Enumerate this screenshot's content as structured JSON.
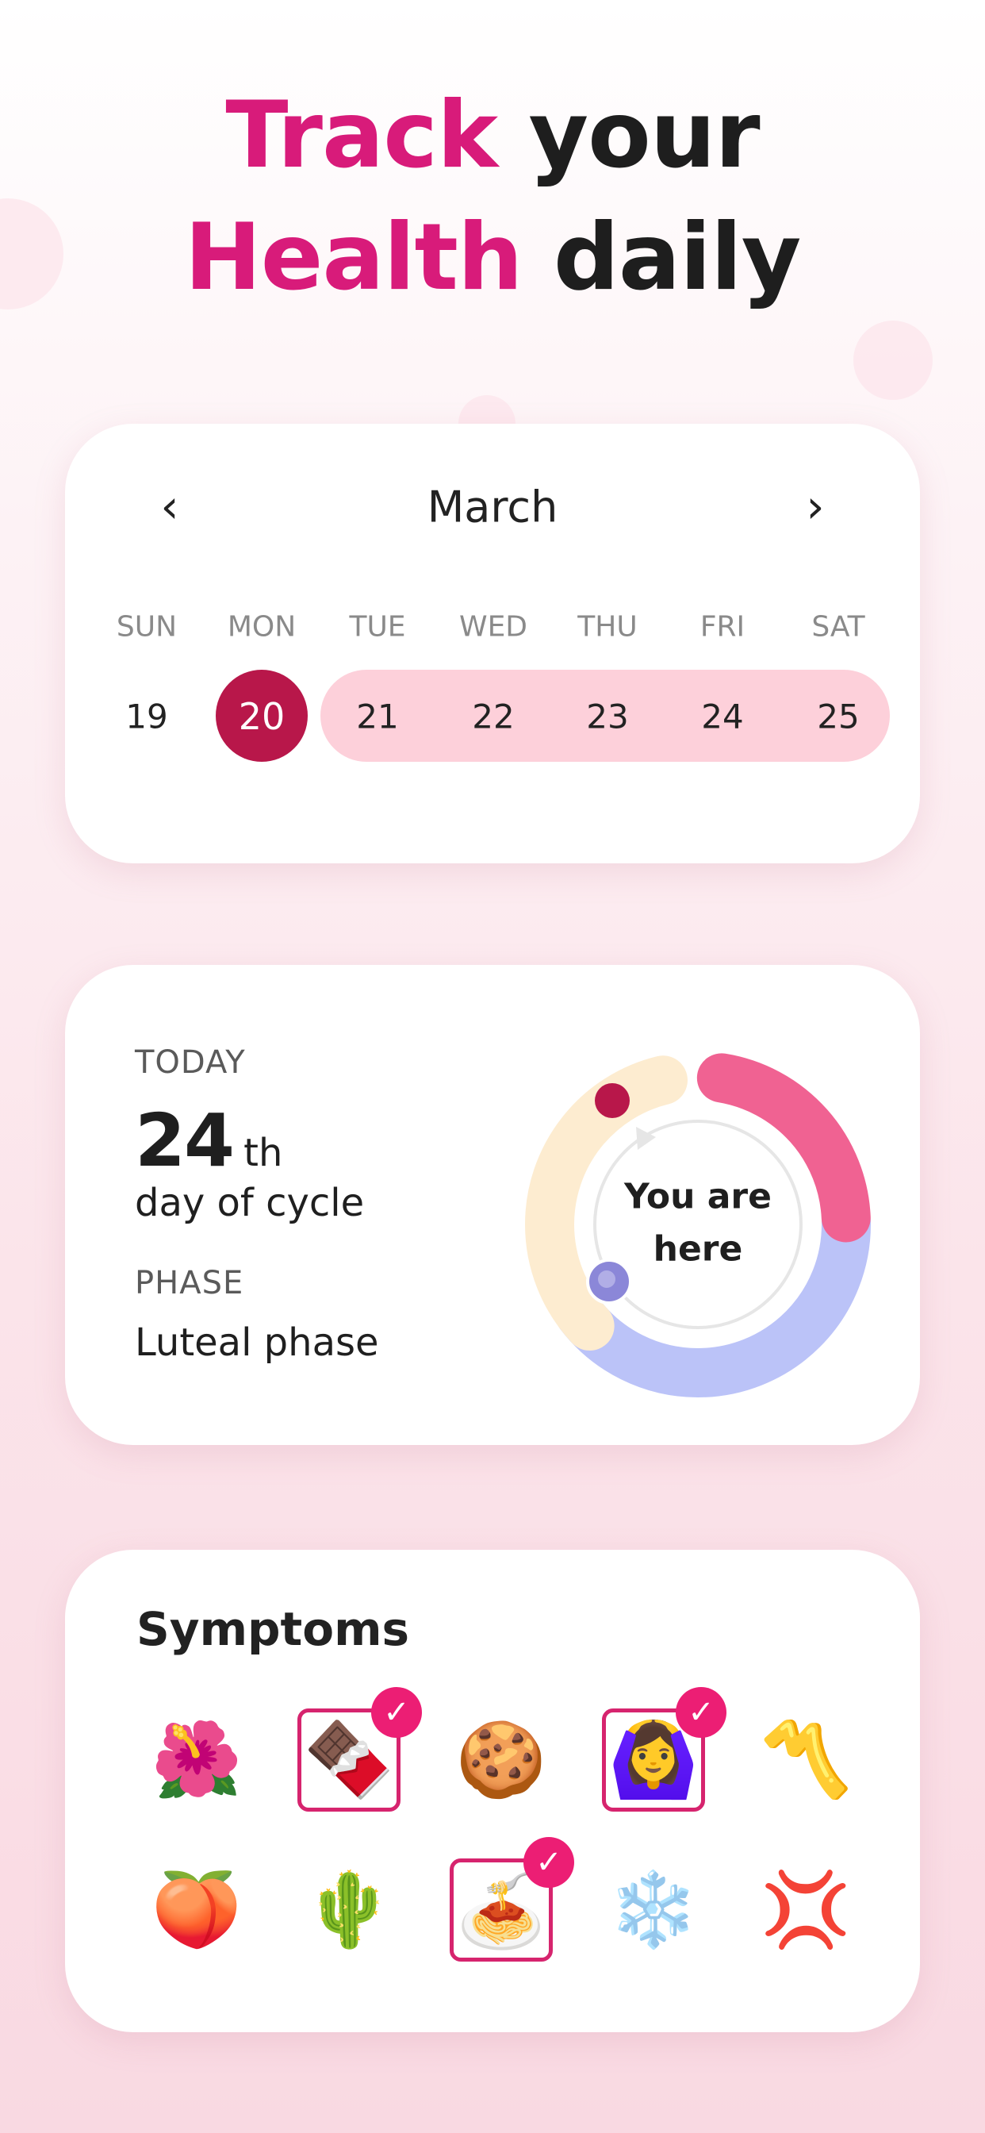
{
  "headline": {
    "line1_accent": "Track",
    "line1_rest": " your",
    "line2_accent": "Health",
    "line2_rest": " daily"
  },
  "calendar": {
    "month": "March",
    "prev_icon": "chevron-left-icon",
    "next_icon": "chevron-right-icon",
    "prev_label": "‹",
    "next_label": "›",
    "weekdays": [
      "SUN",
      "MON",
      "TUE",
      "WED",
      "THU",
      "FRI",
      "SAT"
    ],
    "days": [
      "19",
      "20",
      "21",
      "22",
      "23",
      "24",
      "25"
    ],
    "selected_day": "20",
    "highlighted_range": [
      "21",
      "25"
    ],
    "colors": {
      "selected": "#b8174a",
      "range": "#fdd0da"
    }
  },
  "cycle": {
    "today_label": "TODAY",
    "day_number": "24",
    "day_suffix": "th",
    "day_caption": "day of cycle",
    "phase_label": "PHASE",
    "phase_value": "Luteal phase",
    "ring_center_text_1": "You are",
    "ring_center_text_2": "here",
    "ring_colors": {
      "menstrual": "#f06292",
      "follicular": "#bbc3f8",
      "luteal": "#fdecd0",
      "current_marker": "#b8174a",
      "ovulation_marker": "#8b87d8"
    }
  },
  "symptoms": {
    "title": "Symptoms",
    "check_icon": "✓",
    "items": [
      {
        "emoji": "🌺",
        "icon": "hibiscus-icon",
        "selected": false
      },
      {
        "emoji": "🍫",
        "icon": "chocolate-icon",
        "selected": true
      },
      {
        "emoji": "🍪",
        "icon": "cookie-icon",
        "selected": false
      },
      {
        "emoji": "🙆‍♀️",
        "icon": "woman-gesturing-ok-icon",
        "selected": true
      },
      {
        "emoji": "〽️",
        "icon": "part-alternation-mark-icon",
        "selected": false
      },
      {
        "emoji": "🍑",
        "icon": "peach-icon",
        "selected": false
      },
      {
        "emoji": "🌵",
        "icon": "cactus-icon",
        "selected": false
      },
      {
        "emoji": "🍝",
        "icon": "spaghetti-icon",
        "selected": true
      },
      {
        "emoji": "❄️",
        "icon": "snowflake-icon",
        "selected": false
      },
      {
        "emoji": "💢",
        "icon": "anger-symbol-icon",
        "selected": false
      }
    ]
  }
}
